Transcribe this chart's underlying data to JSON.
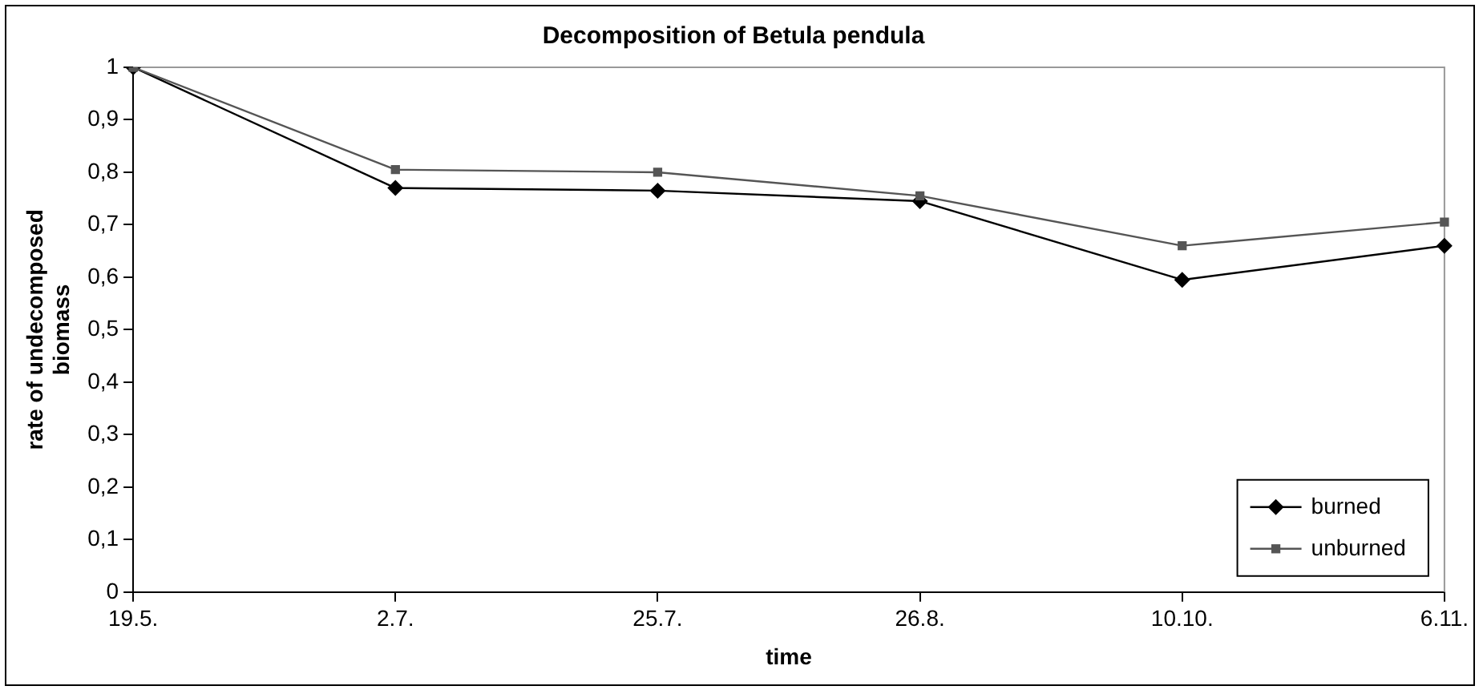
{
  "chart_data": {
    "type": "line",
    "title": "Decomposition of Betula pendula",
    "xlabel": "time",
    "ylabel": "rate of undecomposed biomass",
    "categories": [
      "19.5.",
      "2.7.",
      "25.7.",
      "26.8.",
      "10.10.",
      "6.11."
    ],
    "series": [
      {
        "name": "burned",
        "color": "#000000",
        "marker": "diamond",
        "values": [
          1,
          0.77,
          0.765,
          0.745,
          0.595,
          0.66
        ]
      },
      {
        "name": "unburned",
        "color": "#555555",
        "marker": "square",
        "values": [
          1,
          0.805,
          0.8,
          0.755,
          0.66,
          0.705
        ]
      }
    ],
    "ylim": [
      0,
      1
    ],
    "yticks": [
      0,
      {
        "value": 0.1,
        "label": "0,1"
      },
      {
        "value": 0.2,
        "label": "0,2"
      },
      {
        "value": 0.3,
        "label": "0,3"
      },
      {
        "value": 0.4,
        "label": "0,4"
      },
      {
        "value": 0.5,
        "label": "0,5"
      },
      {
        "value": 0.6,
        "label": "0,6"
      },
      {
        "value": 0.7,
        "label": "0,7"
      },
      {
        "value": 0.8,
        "label": "0,8"
      },
      {
        "value": 0.9,
        "label": "0,9"
      },
      1
    ],
    "grid": false,
    "legend": "bottom right",
    "line_style": "solid"
  }
}
